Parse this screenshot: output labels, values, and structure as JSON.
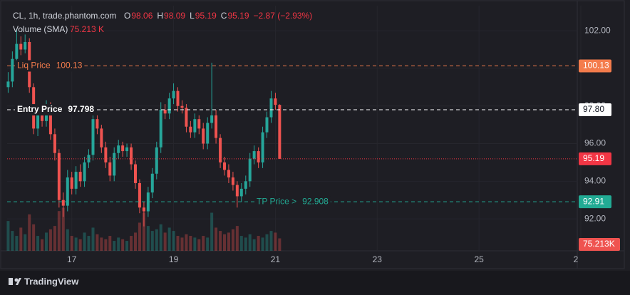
{
  "header": {
    "symbol": "CL, 1h, trade.phantom.com",
    "ohlc": [
      {
        "key": "O",
        "value": 98.06
      },
      {
        "key": "H",
        "value": 98.09
      },
      {
        "key": "L",
        "value": 95.19
      },
      {
        "key": "C",
        "value": 95.19
      }
    ],
    "change": "−2.87 (−2.93%)",
    "volume_label": "Volume (SMA)",
    "volume_value": "75.213 K"
  },
  "chart_data": {
    "type": "candlestick",
    "x": [
      15.75,
      15.833,
      15.917,
      16,
      16.083,
      16.167,
      16.25,
      16.333,
      16.417,
      16.5,
      16.583,
      16.667,
      16.75,
      16.833,
      16.917,
      17,
      17.083,
      17.167,
      17.25,
      17.333,
      17.417,
      17.5,
      17.583,
      17.667,
      17.75,
      17.833,
      17.917,
      18,
      18.083,
      18.167,
      18.25,
      18.333,
      18.417,
      18.5,
      18.583,
      18.667,
      18.75,
      18.833,
      18.917,
      19,
      19.083,
      19.167,
      19.25,
      19.333,
      19.417,
      19.5,
      19.583,
      19.667,
      19.75,
      19.833,
      19.917,
      20,
      20.083,
      20.167,
      20.25,
      20.333,
      20.417,
      20.5,
      20.583,
      20.667,
      20.75,
      20.833,
      20.917,
      21,
      21.083
    ],
    "open": [
      99.0,
      99.3,
      100.5,
      101.3,
      101.0,
      101.4,
      99.0,
      96.8,
      97.6,
      97.2,
      98.0,
      96.5,
      95.5,
      93.0,
      92.7,
      94.2,
      93.6,
      94.5,
      94.0,
      95.0,
      95.4,
      97.3,
      96.8,
      95.8,
      95.0,
      94.3,
      95.5,
      95.9,
      95.6,
      95.8,
      94.9,
      93.9,
      92.6,
      92.4,
      93.4,
      94.4,
      95.8,
      97.8,
      97.6,
      98.4,
      98.8,
      98.0,
      97.9,
      96.9,
      96.6,
      97.3,
      96.8,
      96.0,
      97.1,
      97.5,
      96.3,
      95.0,
      94.6,
      94.2,
      93.8,
      93.2,
      93.6,
      94.0,
      95.2,
      95.6,
      95.0,
      96.6,
      97.4,
      98.4,
      98.06
    ],
    "high": [
      99.8,
      100.9,
      102.1,
      101.7,
      101.8,
      101.6,
      99.2,
      98.0,
      97.9,
      98.3,
      98.2,
      96.8,
      95.7,
      93.4,
      94.6,
      94.5,
      94.8,
      94.9,
      95.3,
      95.7,
      97.6,
      97.5,
      97.0,
      96.1,
      95.3,
      95.8,
      96.2,
      96.1,
      96.0,
      96.0,
      95.1,
      94.1,
      92.9,
      93.7,
      94.7,
      96.1,
      98.2,
      98.1,
      98.7,
      99.2,
      99.0,
      98.3,
      98.1,
      97.2,
      97.6,
      97.5,
      97.1,
      97.4,
      100.3,
      97.8,
      96.5,
      95.3,
      94.9,
      94.5,
      94.0,
      93.9,
      94.3,
      95.5,
      95.9,
      95.8,
      96.9,
      97.7,
      98.8,
      98.7,
      98.09
    ],
    "low": [
      98.7,
      99.0,
      100.2,
      100.7,
      100.8,
      98.7,
      96.5,
      96.4,
      96.9,
      96.9,
      96.2,
      95.1,
      92.6,
      92.1,
      92.4,
      93.3,
      93.3,
      93.7,
      93.7,
      94.7,
      95.1,
      96.5,
      95.5,
      94.7,
      94.0,
      94.0,
      95.2,
      95.3,
      95.3,
      94.6,
      93.6,
      92.3,
      91.6,
      92.1,
      93.1,
      94.1,
      95.5,
      97.3,
      97.3,
      98.1,
      97.7,
      97.6,
      96.6,
      96.3,
      96.3,
      96.5,
      95.7,
      95.7,
      96.8,
      96.0,
      94.7,
      94.3,
      93.9,
      93.5,
      92.6,
      92.9,
      93.3,
      93.7,
      94.9,
      94.7,
      94.7,
      96.3,
      97.1,
      97.8,
      95.19
    ],
    "close": [
      99.3,
      100.5,
      101.3,
      101.0,
      101.4,
      99.0,
      96.8,
      97.6,
      97.2,
      98.0,
      96.5,
      95.5,
      93.0,
      92.7,
      94.2,
      93.6,
      94.5,
      94.0,
      95.0,
      95.4,
      97.3,
      96.8,
      95.8,
      95.0,
      94.3,
      95.5,
      95.9,
      95.6,
      95.8,
      94.9,
      93.9,
      92.6,
      92.4,
      93.4,
      94.4,
      95.8,
      97.8,
      97.6,
      98.4,
      98.8,
      98.0,
      97.9,
      96.9,
      96.6,
      97.3,
      96.8,
      96.0,
      97.1,
      97.5,
      96.3,
      95.0,
      94.6,
      94.2,
      93.8,
      93.2,
      93.6,
      94.0,
      95.2,
      95.6,
      95.0,
      96.6,
      97.4,
      98.4,
      98.06,
      95.19
    ],
    "volume": [
      180,
      120,
      90,
      140,
      100,
      220,
      160,
      90,
      70,
      110,
      130,
      150,
      240,
      260,
      130,
      90,
      80,
      70,
      110,
      90,
      140,
      100,
      80,
      70,
      90,
      60,
      80,
      70,
      60,
      90,
      110,
      170,
      230,
      150,
      120,
      130,
      160,
      110,
      140,
      120,
      90,
      80,
      100,
      90,
      80,
      70,
      90,
      80,
      230,
      140,
      120,
      100,
      110,
      130,
      150,
      90,
      80,
      100,
      70,
      90,
      80,
      100,
      120,
      110,
      75.213
    ],
    "volume_label": "75.213K",
    "up_color": "#26a69a",
    "down_color": "#ef5350",
    "xlim": [
      15.73,
      27.0
    ],
    "xticks": [
      17,
      19,
      21,
      23,
      25,
      {
        "value": 27,
        "label": "2"
      }
    ],
    "ylim": [
      90.3,
      103.33
    ],
    "yticks": [
      {
        "value": 92,
        "label": "92.00"
      },
      {
        "value": 94,
        "label": "94.00"
      },
      {
        "value": 96,
        "label": "96.00"
      },
      {
        "value": 98,
        "label": "98.00"
      },
      {
        "value": 100,
        "label": "100.00"
      },
      {
        "value": 102,
        "label": "102.00"
      }
    ],
    "vlim": [
      0,
      430
    ],
    "price_lines": [
      {
        "label": "Liq Price",
        "value": 100.13,
        "axis_label": "100.13",
        "color": "#f47c4c",
        "style": "dashed"
      },
      {
        "label": "Entry Price",
        "value": 97.798,
        "axis_label": "97.80",
        "color": "#ffffff",
        "style": "dashed"
      },
      {
        "value": 95.19,
        "axis_label": "95.19",
        "color": "#f23645",
        "style": "dotted"
      },
      {
        "label": "TP Price >",
        "value": 92.908,
        "axis_label": "92.91",
        "color": "#22ab94",
        "style": "dashed"
      }
    ]
  },
  "footer": {
    "brand": "TradingView"
  }
}
